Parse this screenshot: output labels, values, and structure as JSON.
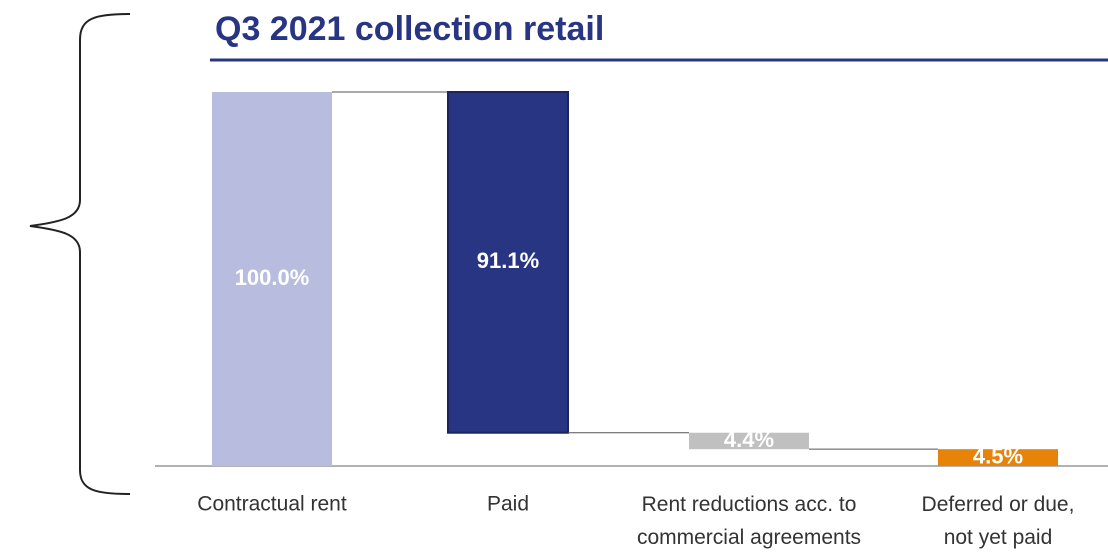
{
  "chart_data": {
    "type": "waterfall",
    "title": "Q3 2021 collection retail",
    "categories": [
      "Contractual rent",
      "Paid",
      "Rent reductions acc. to\ncommercial agreements",
      "Deferred or due,\nnot yet paid"
    ],
    "values": [
      100,
      91.1,
      4.4,
      4.5
    ],
    "value_labels": [
      "100.0%",
      "91.1%",
      "4.4%",
      "4.5%"
    ],
    "colors": [
      "#b8bde0",
      "#283583",
      "#c0c0c0",
      "#e8830a"
    ]
  }
}
